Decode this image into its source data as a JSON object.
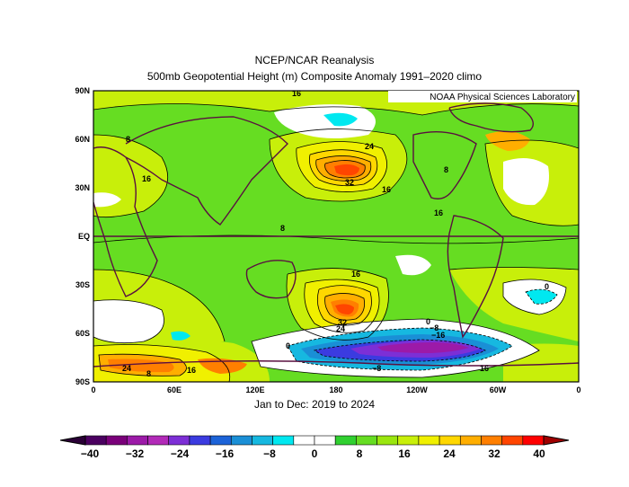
{
  "title": "NCEP/NCAR Reanalysis",
  "subtitle": "500mb Geopotential Height (m) Composite Anomaly 1991–2020 climo",
  "credit": "NOAA Physical Sciences Laboratory",
  "footer": "Jan to Dec: 2019 to 2024",
  "lat_labels": [
    "90N",
    "60N",
    "30N",
    "EQ",
    "30S",
    "60S",
    "90S"
  ],
  "lon_labels": [
    "0",
    "60E",
    "120E",
    "180",
    "120W",
    "60W",
    "0"
  ],
  "contour_labels": [
    "16",
    "8",
    "24",
    "32",
    "16",
    "16",
    "8",
    "16",
    "8",
    "16",
    "32",
    "24",
    "0",
    "−8",
    "−16",
    "24",
    "16",
    "8",
    "0",
    "−8",
    "0",
    "16"
  ],
  "colorbar": {
    "labels": [
      "−40",
      "−32",
      "−24",
      "−16",
      "−8",
      "0",
      "8",
      "16",
      "24",
      "32",
      "40"
    ],
    "colors": [
      "#4b0060",
      "#7a007a",
      "#9c1aa8",
      "#b22ab8",
      "#7d2fd6",
      "#3b3be0",
      "#1c63d8",
      "#1a8fd6",
      "#16b8e0",
      "#00e8f0",
      "#ffffff",
      "#ffffff",
      "#30d030",
      "#66dd22",
      "#9ae60f",
      "#c8ef0a",
      "#f0f000",
      "#ffd700",
      "#ffae00",
      "#ff7f00",
      "#ff4500",
      "#ff0000"
    ]
  },
  "map": {
    "field": "500mb geopotential height anomaly",
    "units": "m",
    "background_color": "#66dd22",
    "maxima": [
      {
        "label": "32",
        "lat": 40,
        "lon": 160
      },
      {
        "label": "32",
        "lat": -48,
        "lon": 200
      }
    ],
    "minima": [
      {
        "label": "−16",
        "lat": -70,
        "lon": 235
      }
    ]
  }
}
